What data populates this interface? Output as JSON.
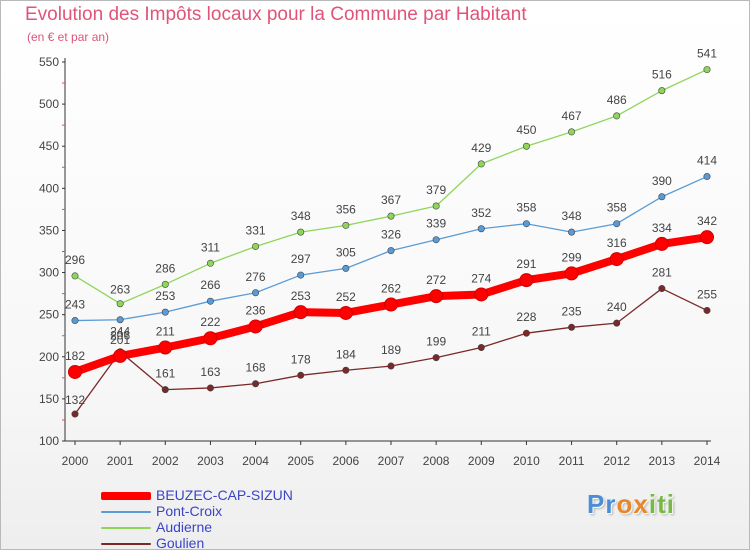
{
  "header": {
    "title": "Evolution des Impôts locaux pour la Commune par Habitant",
    "subtitle": "(en € et par an)"
  },
  "logo": {
    "text": "Proxiti",
    "letters": [
      "P",
      "r",
      "o",
      "x",
      "i",
      "t",
      "i"
    ],
    "colors": [
      "#4a8fd6",
      "#4a8fd6",
      "#e8862a",
      "#e8862a",
      "#78b943",
      "#78b943",
      "#78b943"
    ]
  },
  "chart_data": {
    "type": "line",
    "title": "Evolution des Impôts locaux pour la Commune par Habitant",
    "subtitle": "(en € et par an)",
    "xlabel": "",
    "ylabel": "",
    "ylim": [
      100,
      550
    ],
    "yticks": [
      100,
      150,
      200,
      250,
      300,
      350,
      400,
      450,
      500,
      550
    ],
    "grid": false,
    "legend_position": "bottom-left",
    "categories": [
      "2000",
      "2001",
      "2002",
      "2003",
      "2004",
      "2005",
      "2006",
      "2007",
      "2008",
      "2009",
      "2010",
      "2011",
      "2012",
      "2013",
      "2014"
    ],
    "series": [
      {
        "name": "BEUZEC-CAP-SIZUN",
        "color": "#ff0000",
        "emphasis": true,
        "values": [
          182,
          201,
          211,
          222,
          236,
          253,
          252,
          262,
          272,
          274,
          291,
          299,
          316,
          334,
          342
        ]
      },
      {
        "name": "Pont-Croix",
        "color": "#5b9bd5",
        "emphasis": false,
        "values": [
          243,
          244,
          253,
          266,
          276,
          297,
          305,
          326,
          339,
          352,
          358,
          348,
          358,
          390,
          414
        ]
      },
      {
        "name": "Audierne",
        "color": "#8ed65a",
        "emphasis": false,
        "values": [
          296,
          263,
          286,
          311,
          331,
          348,
          356,
          367,
          379,
          429,
          450,
          467,
          486,
          516,
          541
        ]
      },
      {
        "name": "Goulien",
        "color": "#7a2828",
        "emphasis": false,
        "values": [
          132,
          206,
          161,
          163,
          168,
          178,
          184,
          189,
          199,
          211,
          228,
          235,
          240,
          281,
          255
        ]
      }
    ]
  }
}
